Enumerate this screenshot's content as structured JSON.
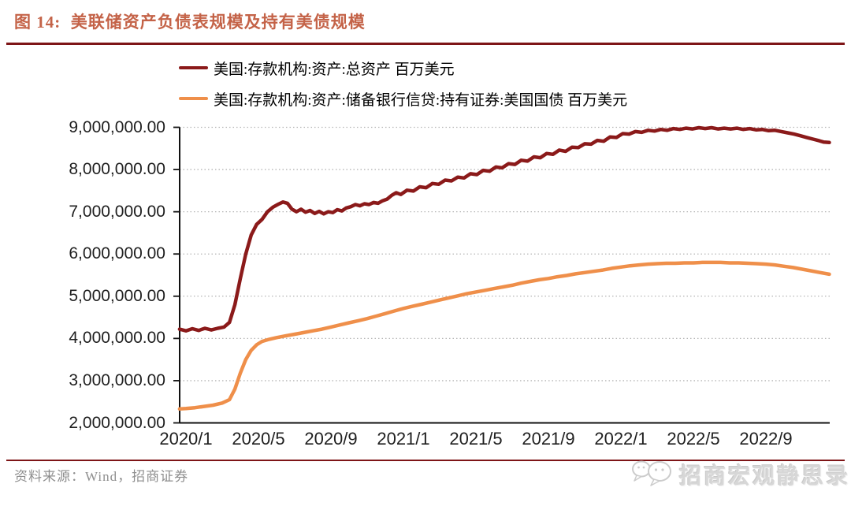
{
  "header": {
    "title": "图 14:  美联储资产负债表规模及持有美债规模"
  },
  "footer": {
    "source": "资料来源：Wind，招商证券"
  },
  "watermark": {
    "text": "招商宏观静思录",
    "icon": "wechat-chat-bubbles-icon"
  },
  "chart_data": {
    "type": "line",
    "title": "美联储资产负债表规模及持有美债规模",
    "x_unit": "months_since_2020_01",
    "grid": "horizontal-dotted",
    "legend_position": "top-left",
    "x_axis": {
      "ticks": [
        {
          "label": "2020/1",
          "t": 0
        },
        {
          "label": "2020/5",
          "t": 4
        },
        {
          "label": "2020/9",
          "t": 8
        },
        {
          "label": "2021/1",
          "t": 12
        },
        {
          "label": "2021/5",
          "t": 16
        },
        {
          "label": "2021/9",
          "t": 20
        },
        {
          "label": "2022/1",
          "t": 24
        },
        {
          "label": "2022/5",
          "t": 28
        },
        {
          "label": "2022/9",
          "t": 32
        }
      ]
    },
    "y_axis": {
      "range": [
        2000000,
        9000000
      ],
      "ticks": [
        {
          "label": "9,000,000.00",
          "value": 9000000
        },
        {
          "label": "8,000,000.00",
          "value": 8000000
        },
        {
          "label": "7,000,000.00",
          "value": 7000000
        },
        {
          "label": "6,000,000.00",
          "value": 6000000
        },
        {
          "label": "5,000,000.00",
          "value": 5000000
        },
        {
          "label": "4,000,000.00",
          "value": 4000000
        },
        {
          "label": "3,000,000.00",
          "value": 3000000
        },
        {
          "label": "2,000,000.00",
          "value": 2000000
        }
      ]
    },
    "series": [
      {
        "name": "美国:存款机构:资产:总资产 百万美元",
        "color": "#8B1A1A",
        "points": [
          [
            -0.35,
            4220000
          ],
          [
            0,
            4180000
          ],
          [
            0.35,
            4230000
          ],
          [
            0.7,
            4190000
          ],
          [
            1.05,
            4240000
          ],
          [
            1.4,
            4200000
          ],
          [
            1.75,
            4240000
          ],
          [
            2.1,
            4270000
          ],
          [
            2.4,
            4380000
          ],
          [
            2.7,
            4800000
          ],
          [
            3.0,
            5420000
          ],
          [
            3.3,
            6000000
          ],
          [
            3.6,
            6450000
          ],
          [
            3.9,
            6700000
          ],
          [
            4.2,
            6820000
          ],
          [
            4.5,
            7000000
          ],
          [
            4.8,
            7110000
          ],
          [
            5.1,
            7180000
          ],
          [
            5.35,
            7230000
          ],
          [
            5.6,
            7200000
          ],
          [
            5.85,
            7060000
          ],
          [
            6.1,
            7000000
          ],
          [
            6.35,
            7060000
          ],
          [
            6.6,
            6990000
          ],
          [
            6.85,
            7030000
          ],
          [
            7.1,
            6960000
          ],
          [
            7.35,
            7010000
          ],
          [
            7.6,
            6950000
          ],
          [
            7.85,
            7000000
          ],
          [
            8.1,
            6980000
          ],
          [
            8.35,
            7050000
          ],
          [
            8.6,
            7020000
          ],
          [
            8.85,
            7090000
          ],
          [
            9.1,
            7120000
          ],
          [
            9.35,
            7170000
          ],
          [
            9.6,
            7140000
          ],
          [
            9.85,
            7190000
          ],
          [
            10.1,
            7170000
          ],
          [
            10.35,
            7220000
          ],
          [
            10.6,
            7200000
          ],
          [
            10.85,
            7260000
          ],
          [
            11.1,
            7300000
          ],
          [
            11.35,
            7390000
          ],
          [
            11.6,
            7450000
          ],
          [
            11.85,
            7410000
          ],
          [
            12.2,
            7510000
          ],
          [
            12.55,
            7490000
          ],
          [
            12.9,
            7590000
          ],
          [
            13.25,
            7570000
          ],
          [
            13.6,
            7670000
          ],
          [
            13.95,
            7650000
          ],
          [
            14.3,
            7750000
          ],
          [
            14.65,
            7730000
          ],
          [
            15.0,
            7820000
          ],
          [
            15.35,
            7800000
          ],
          [
            15.7,
            7900000
          ],
          [
            16.05,
            7880000
          ],
          [
            16.4,
            7980000
          ],
          [
            16.75,
            7960000
          ],
          [
            17.1,
            8060000
          ],
          [
            17.45,
            8040000
          ],
          [
            17.8,
            8140000
          ],
          [
            18.15,
            8120000
          ],
          [
            18.5,
            8220000
          ],
          [
            18.85,
            8200000
          ],
          [
            19.2,
            8300000
          ],
          [
            19.55,
            8280000
          ],
          [
            19.9,
            8380000
          ],
          [
            20.25,
            8360000
          ],
          [
            20.6,
            8460000
          ],
          [
            20.95,
            8430000
          ],
          [
            21.3,
            8530000
          ],
          [
            21.65,
            8520000
          ],
          [
            22.0,
            8610000
          ],
          [
            22.35,
            8600000
          ],
          [
            22.7,
            8690000
          ],
          [
            23.05,
            8670000
          ],
          [
            23.4,
            8770000
          ],
          [
            23.75,
            8760000
          ],
          [
            24.1,
            8850000
          ],
          [
            24.45,
            8840000
          ],
          [
            24.8,
            8900000
          ],
          [
            25.15,
            8880000
          ],
          [
            25.5,
            8930000
          ],
          [
            25.85,
            8910000
          ],
          [
            26.2,
            8950000
          ],
          [
            26.55,
            8930000
          ],
          [
            26.9,
            8970000
          ],
          [
            27.25,
            8950000
          ],
          [
            27.6,
            8980000
          ],
          [
            27.95,
            8960000
          ],
          [
            28.3,
            8990000
          ],
          [
            28.65,
            8970000
          ],
          [
            29.0,
            8990000
          ],
          [
            29.35,
            8960000
          ],
          [
            29.7,
            8980000
          ],
          [
            30.05,
            8960000
          ],
          [
            30.4,
            8980000
          ],
          [
            30.75,
            8950000
          ],
          [
            31.1,
            8970000
          ],
          [
            31.45,
            8940000
          ],
          [
            31.8,
            8950000
          ],
          [
            32.15,
            8920000
          ],
          [
            32.5,
            8930000
          ],
          [
            32.85,
            8900000
          ],
          [
            33.2,
            8870000
          ],
          [
            33.55,
            8840000
          ],
          [
            33.9,
            8800000
          ],
          [
            34.25,
            8760000
          ],
          [
            34.6,
            8720000
          ],
          [
            34.95,
            8680000
          ],
          [
            35.2,
            8650000
          ],
          [
            35.5,
            8640000
          ]
        ]
      },
      {
        "name": "美国:存款机构:资产:储备银行信贷:持有证券:美国国债 百万美元",
        "color": "#EF8F4A",
        "points": [
          [
            -0.35,
            2330000
          ],
          [
            0,
            2340000
          ],
          [
            0.5,
            2360000
          ],
          [
            1.0,
            2390000
          ],
          [
            1.5,
            2420000
          ],
          [
            2.0,
            2470000
          ],
          [
            2.4,
            2550000
          ],
          [
            2.7,
            2800000
          ],
          [
            3.0,
            3180000
          ],
          [
            3.3,
            3500000
          ],
          [
            3.6,
            3720000
          ],
          [
            3.9,
            3850000
          ],
          [
            4.2,
            3930000
          ],
          [
            4.6,
            3980000
          ],
          [
            5.0,
            4020000
          ],
          [
            5.5,
            4060000
          ],
          [
            6.0,
            4100000
          ],
          [
            6.5,
            4140000
          ],
          [
            7.0,
            4180000
          ],
          [
            7.5,
            4220000
          ],
          [
            8.0,
            4270000
          ],
          [
            8.5,
            4320000
          ],
          [
            9.0,
            4370000
          ],
          [
            9.5,
            4420000
          ],
          [
            10.0,
            4470000
          ],
          [
            10.5,
            4530000
          ],
          [
            11.0,
            4590000
          ],
          [
            11.5,
            4650000
          ],
          [
            12.0,
            4710000
          ],
          [
            12.5,
            4760000
          ],
          [
            13.0,
            4810000
          ],
          [
            13.5,
            4860000
          ],
          [
            14.0,
            4910000
          ],
          [
            14.5,
            4960000
          ],
          [
            15.0,
            5010000
          ],
          [
            15.5,
            5060000
          ],
          [
            16.0,
            5100000
          ],
          [
            16.5,
            5140000
          ],
          [
            17.0,
            5180000
          ],
          [
            17.5,
            5220000
          ],
          [
            18.0,
            5260000
          ],
          [
            18.5,
            5310000
          ],
          [
            19.0,
            5350000
          ],
          [
            19.5,
            5390000
          ],
          [
            20.0,
            5420000
          ],
          [
            20.5,
            5460000
          ],
          [
            21.0,
            5490000
          ],
          [
            21.5,
            5530000
          ],
          [
            22.0,
            5560000
          ],
          [
            22.5,
            5590000
          ],
          [
            23.0,
            5620000
          ],
          [
            23.5,
            5660000
          ],
          [
            24.0,
            5690000
          ],
          [
            24.5,
            5720000
          ],
          [
            25.0,
            5740000
          ],
          [
            25.5,
            5760000
          ],
          [
            26.0,
            5770000
          ],
          [
            26.5,
            5780000
          ],
          [
            27.0,
            5780000
          ],
          [
            27.5,
            5790000
          ],
          [
            28.0,
            5790000
          ],
          [
            28.5,
            5800000
          ],
          [
            29.0,
            5800000
          ],
          [
            29.5,
            5800000
          ],
          [
            30.0,
            5790000
          ],
          [
            30.5,
            5790000
          ],
          [
            31.0,
            5780000
          ],
          [
            31.5,
            5770000
          ],
          [
            32.0,
            5760000
          ],
          [
            32.5,
            5740000
          ],
          [
            33.0,
            5710000
          ],
          [
            33.5,
            5680000
          ],
          [
            34.0,
            5640000
          ],
          [
            34.5,
            5600000
          ],
          [
            35.0,
            5560000
          ],
          [
            35.5,
            5520000
          ]
        ]
      }
    ]
  }
}
